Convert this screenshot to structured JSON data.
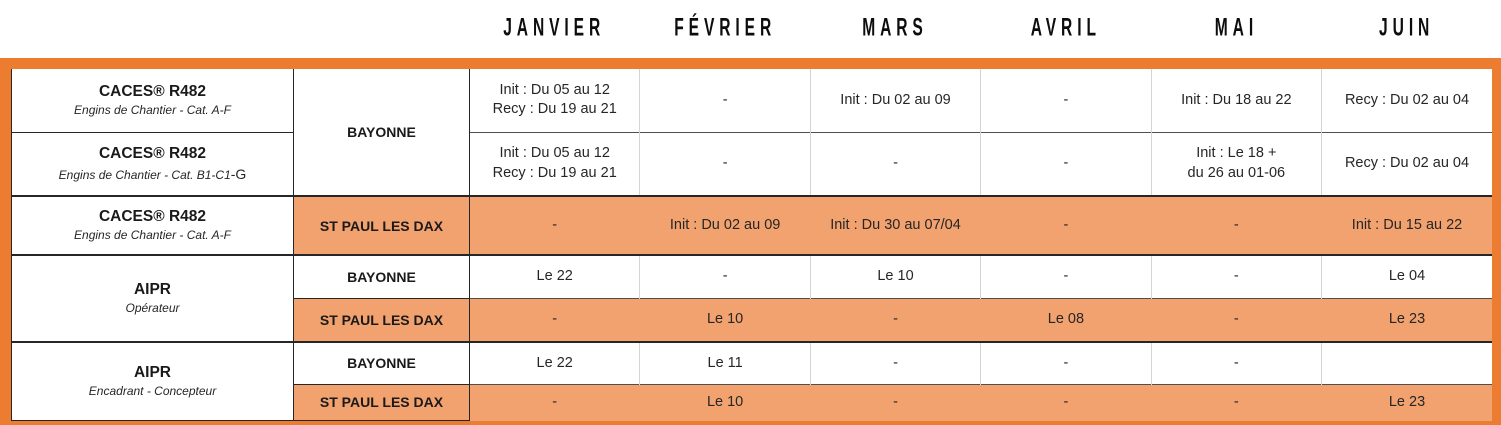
{
  "colors": {
    "frame_orange": "#EC7C30",
    "highlight_orange": "#F1A26F"
  },
  "months": [
    "JANVIER",
    "FÉVRIER",
    "MARS",
    "AVRIL",
    "MAI",
    "JUIN"
  ],
  "table": {
    "rows": [
      {
        "course_title": "CACES® R482",
        "course_subtitle": "Engins de Chantier - Cat. A-F",
        "location": "BAYONNE",
        "cells": [
          "Init : Du 05 au 12\nRecy : Du 19 au 21",
          "-",
          "Init : Du 02 au 09",
          "-",
          "Init : Du 18 au 22",
          "Recy : Du 02 au 04"
        ]
      },
      {
        "course_title": "CACES® R482",
        "course_subtitle": "Engins de Chantier - Cat. B1-C1",
        "course_subtitle_suffix": "-G",
        "cells": [
          "Init : Du 05 au 12\nRecy : Du 19 au 21",
          "-",
          "-",
          "-",
          "Init : Le 18 +\ndu 26 au 01-06",
          "Recy : Du 02 au 04"
        ]
      },
      {
        "course_title": "CACES® R482",
        "course_subtitle": "Engins de Chantier - Cat. A-F",
        "location": "ST PAUL LES DAX",
        "cells": [
          "-",
          "Init : Du 02 au 09",
          "Init : Du 30 au 07/04",
          "-",
          "-",
          "Init : Du 15 au 22"
        ]
      },
      {
        "course_title": "AIPR",
        "course_subtitle": "Opérateur",
        "location": "BAYONNE",
        "cells": [
          "Le 22",
          "-",
          "Le 10",
          "-",
          "-",
          "Le 04"
        ]
      },
      {
        "location": "ST PAUL LES DAX",
        "cells": [
          "-",
          "Le 10",
          "-",
          "Le 08",
          "-",
          "Le 23"
        ]
      },
      {
        "course_title": "AIPR",
        "course_subtitle": "Encadrant - Concepteur",
        "location": "BAYONNE",
        "cells": [
          "Le 22",
          "Le 11",
          "-",
          "-",
          "-",
          ""
        ]
      },
      {
        "location": "ST PAUL LES DAX",
        "cells": [
          "-",
          "Le 10",
          "-",
          "-",
          "-",
          "Le 23"
        ]
      }
    ]
  }
}
